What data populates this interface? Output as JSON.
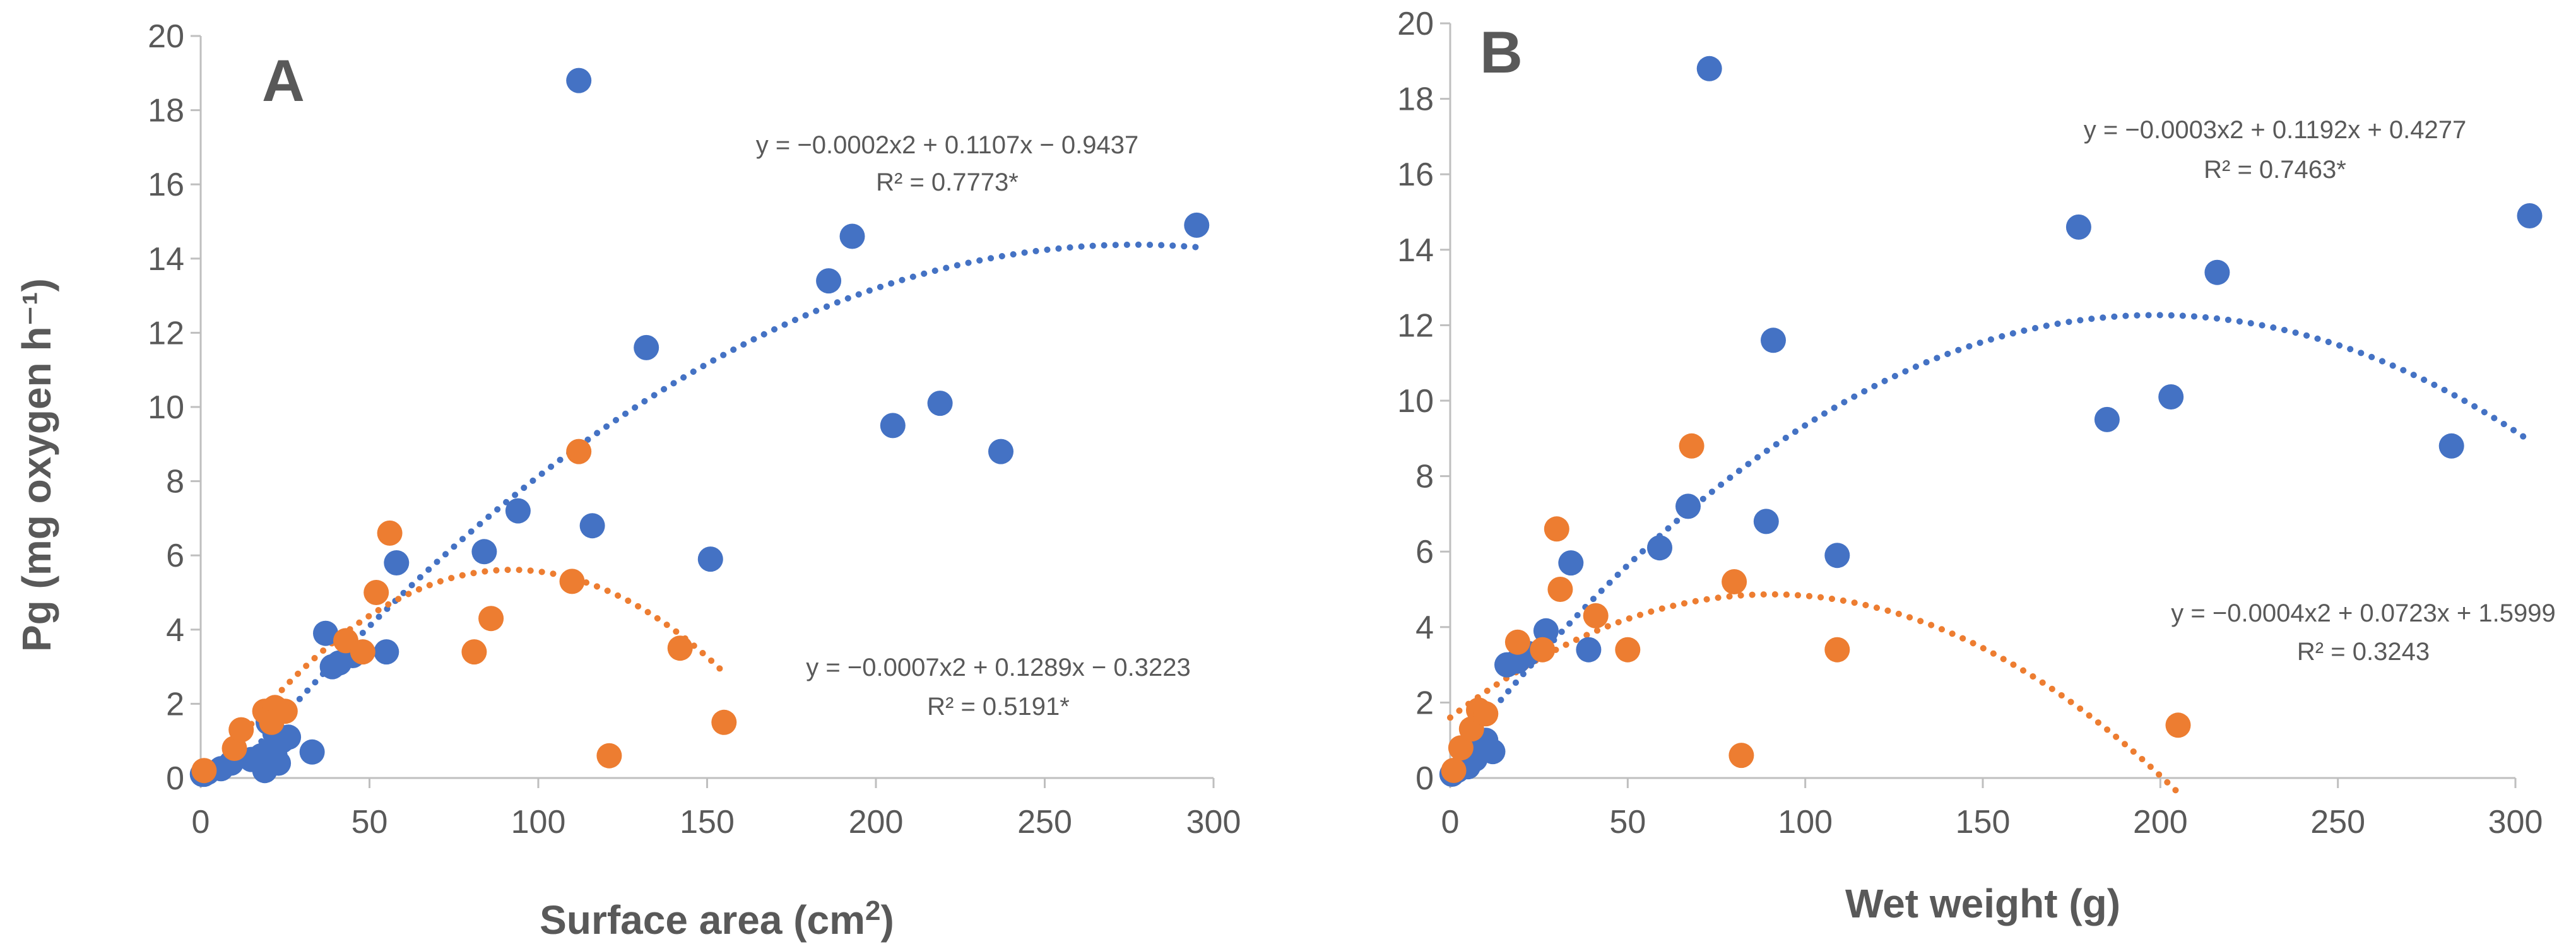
{
  "chart_data": [
    {
      "type": "scatter",
      "panel_label": "A",
      "xlabel_text": "Surface area (cm",
      "xlabel_sup": "2",
      "xlabel_end": ")",
      "ylabel": "Pg (mg oxygen h⁻¹)",
      "xlim": [
        0,
        300
      ],
      "ylim": [
        0,
        20
      ],
      "xticks": [
        0,
        50,
        100,
        150,
        200,
        250,
        300
      ],
      "yticks": [
        0,
        2,
        4,
        6,
        8,
        10,
        12,
        14,
        16,
        18,
        20
      ],
      "grid": false,
      "series": [
        {
          "name": "blue",
          "color": "#4472c4",
          "points": [
            [
              0.5,
              0.1
            ],
            [
              1,
              0.1
            ],
            [
              2,
              0.15
            ],
            [
              6,
              0.25
            ],
            [
              9,
              0.4
            ],
            [
              15,
              0.5
            ],
            [
              18,
              0.6
            ],
            [
              19,
              0.2
            ],
            [
              20,
              0.7
            ],
            [
              22,
              0.6
            ],
            [
              23,
              0.4
            ],
            [
              26,
              1.1
            ],
            [
              33,
              0.7
            ],
            [
              37,
              3.9
            ],
            [
              39,
              3.0
            ],
            [
              41,
              3.1
            ],
            [
              45,
              3.3
            ],
            [
              55,
              3.4
            ],
            [
              58,
              5.8
            ],
            [
              84,
              6.1
            ],
            [
              94,
              7.2
            ],
            [
              112,
              18.8
            ],
            [
              116,
              6.8
            ],
            [
              132,
              11.6
            ],
            [
              151,
              5.9
            ],
            [
              186,
              13.4
            ],
            [
              193,
              14.6
            ],
            [
              205,
              9.5
            ],
            [
              219,
              10.1
            ],
            [
              237,
              8.8
            ],
            [
              295,
              14.9
            ],
            [
              20,
              1.5
            ],
            [
              22,
              1.2
            ],
            [
              24,
              1.0
            ]
          ],
          "trend": {
            "a": -0.0002,
            "b": 0.1107,
            "c": -0.9437,
            "x_range": [
              18,
              295
            ]
          },
          "equation": "y = −0.0002x2 + 0.1107x − 0.9437",
          "r2": "R² = 0.7773*"
        },
        {
          "name": "orange",
          "color": "#ed7d31",
          "points": [
            [
              1,
              0.2
            ],
            [
              10,
              0.8
            ],
            [
              12,
              1.3
            ],
            [
              19,
              1.8
            ],
            [
              22,
              1.9
            ],
            [
              21,
              1.5
            ],
            [
              43,
              3.7
            ],
            [
              48,
              3.4
            ],
            [
              52,
              5.0
            ],
            [
              56,
              6.6
            ],
            [
              81,
              3.4
            ],
            [
              86,
              4.3
            ],
            [
              110,
              5.3
            ],
            [
              112,
              8.8
            ],
            [
              121,
              0.6
            ],
            [
              142,
              3.5
            ],
            [
              155,
              1.5
            ],
            [
              25,
              1.8
            ]
          ],
          "trend": {
            "a": -0.0007,
            "b": 0.1289,
            "c": -0.3223,
            "x_range": [
              15,
              155
            ]
          },
          "equation": "y = −0.0007x2 + 0.1289x − 0.3223",
          "r2": "R² = 0.5191*"
        }
      ]
    },
    {
      "type": "scatter",
      "panel_label": "B",
      "xlabel_text": "Wet weight (g)",
      "xlabel_sup": "",
      "xlabel_end": "",
      "ylabel": "",
      "xlim": [
        0,
        300
      ],
      "ylim": [
        0,
        20
      ],
      "xticks": [
        0,
        50,
        100,
        150,
        200,
        250,
        300
      ],
      "yticks": [
        0,
        2,
        4,
        6,
        8,
        10,
        12,
        14,
        16,
        18,
        20
      ],
      "grid": false,
      "series": [
        {
          "name": "blue",
          "color": "#4472c4",
          "points": [
            [
              0.5,
              0.1
            ],
            [
              2,
              0.2
            ],
            [
              4,
              0.4
            ],
            [
              5,
              0.3
            ],
            [
              6,
              0.6
            ],
            [
              7,
              0.5
            ],
            [
              8,
              1.0
            ],
            [
              10,
              1.0
            ],
            [
              12,
              0.7
            ],
            [
              16,
              3.0
            ],
            [
              19,
              3.1
            ],
            [
              22,
              3.3
            ],
            [
              27,
              3.9
            ],
            [
              34,
              5.7
            ],
            [
              39,
              3.4
            ],
            [
              59,
              6.1
            ],
            [
              67,
              7.2
            ],
            [
              73,
              18.8
            ],
            [
              89,
              6.8
            ],
            [
              91,
              11.6
            ],
            [
              109,
              5.9
            ],
            [
              177,
              14.6
            ],
            [
              185,
              9.5
            ],
            [
              203,
              10.1
            ],
            [
              216,
              13.4
            ],
            [
              282,
              8.8
            ],
            [
              304,
              14.9
            ]
          ],
          "trend": {
            "a": -0.0003,
            "b": 0.1192,
            "c": 0.4277,
            "x_range": [
              2,
              304
            ]
          },
          "equation": "y = −0.0003x2 + 0.1192x + 0.4277",
          "r2": "R² = 0.7463*"
        },
        {
          "name": "orange",
          "color": "#ed7d31",
          "points": [
            [
              1,
              0.2
            ],
            [
              3,
              0.8
            ],
            [
              6,
              1.3
            ],
            [
              8,
              1.8
            ],
            [
              10,
              1.7
            ],
            [
              19,
              3.6
            ],
            [
              26,
              3.4
            ],
            [
              30,
              6.6
            ],
            [
              31,
              5.0
            ],
            [
              41,
              4.3
            ],
            [
              50,
              3.4
            ],
            [
              68,
              8.8
            ],
            [
              80,
              5.2
            ],
            [
              82,
              0.6
            ],
            [
              109,
              3.4
            ],
            [
              205,
              1.4
            ]
          ],
          "trend": {
            "a": -0.0004,
            "b": 0.0723,
            "c": 1.5999,
            "x_range": [
              0,
              205
            ]
          },
          "equation": "y = −0.0004x2 + 0.0723x + 1.5999",
          "r2": "R² = 0.3243"
        }
      ]
    }
  ]
}
